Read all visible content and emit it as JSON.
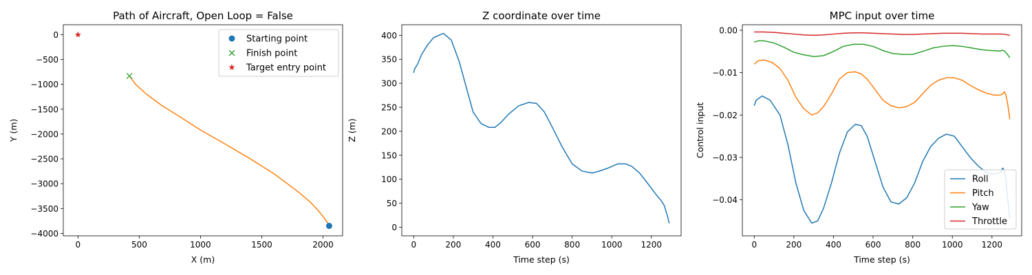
{
  "colors": {
    "blue": "#1f77b4",
    "orange": "#ff7f0e",
    "green": "#2ca02c",
    "red": "#d62728",
    "legend_border": "#cccccc"
  },
  "chart_data": [
    {
      "type": "line",
      "title": "Path of Aircraft, Open Loop = False",
      "xlabel": "X (m)",
      "ylabel": "Y (m)",
      "xlim": [
        -120,
        2160
      ],
      "ylim": [
        -4050,
        200
      ],
      "xticks": [
        0,
        500,
        1000,
        1500,
        2000
      ],
      "yticks": [
        0,
        -500,
        -1000,
        -1500,
        -2000,
        -2500,
        -3000,
        -3500,
        -4000
      ],
      "legend_position": "upper-right",
      "series": [
        {
          "name": "",
          "color_key": "orange",
          "kind": "line",
          "x": [
            420,
            470,
            560,
            680,
            830,
            1000,
            1200,
            1400,
            1600,
            1800,
            1900,
            1960,
            2000,
            2035,
            2050
          ],
          "y": [
            -830,
            -1000,
            -1200,
            -1420,
            -1650,
            -1920,
            -2200,
            -2490,
            -2800,
            -3170,
            -3380,
            -3540,
            -3660,
            -3780,
            -3840
          ]
        },
        {
          "name": "Starting point",
          "color_key": "blue",
          "kind": "circle",
          "x": [
            2050
          ],
          "y": [
            -3850
          ]
        },
        {
          "name": "Finish point",
          "color_key": "green",
          "kind": "x",
          "x": [
            420
          ],
          "y": [
            -830
          ]
        },
        {
          "name": "Target entry point",
          "color_key": "red",
          "kind": "star",
          "x": [
            0
          ],
          "y": [
            0
          ]
        }
      ]
    },
    {
      "type": "line",
      "title": "Z coordinate over time",
      "xlabel": "Time step (s)",
      "ylabel": "Z (m)",
      "xlim": [
        -60,
        1350
      ],
      "ylim": [
        -18,
        422
      ],
      "xticks": [
        0,
        200,
        400,
        600,
        800,
        1000,
        1200
      ],
      "yticks": [
        0,
        50,
        100,
        150,
        200,
        250,
        300,
        350,
        400
      ],
      "series": [
        {
          "name": "",
          "color_key": "blue",
          "x": [
            0,
            5,
            20,
            40,
            70,
            100,
            150,
            190,
            230,
            260,
            300,
            340,
            380,
            410,
            440,
            480,
            530,
            580,
            620,
            660,
            700,
            750,
            800,
            850,
            900,
            930,
            980,
            1030,
            1070,
            1100,
            1140,
            1180,
            1220,
            1250,
            1265,
            1280,
            1290
          ],
          "y": [
            322,
            330,
            340,
            360,
            380,
            395,
            404,
            390,
            345,
            300,
            240,
            216,
            208,
            208,
            218,
            236,
            253,
            260,
            258,
            240,
            208,
            167,
            132,
            117,
            113,
            116,
            123,
            132,
            132,
            127,
            113,
            92,
            70,
            55,
            45,
            25,
            8
          ]
        }
      ]
    },
    {
      "type": "line",
      "title": "MPC input over time",
      "xlabel": "Time step (s)",
      "ylabel": "Control input",
      "xlim": [
        -60,
        1350
      ],
      "ylim": [
        -0.0485,
        0.0013
      ],
      "xticks": [
        0,
        200,
        400,
        600,
        800,
        1000,
        1200
      ],
      "yticks": [
        0.0,
        -0.01,
        -0.02,
        -0.03,
        -0.04
      ],
      "ytick_labels": [
        "0.00",
        "−0.01",
        "−0.02",
        "−0.03",
        "−0.04"
      ],
      "legend_position": "lower-right",
      "series": [
        {
          "name": "Roll",
          "color_key": "blue",
          "x": [
            0,
            10,
            40,
            80,
            130,
            170,
            210,
            250,
            290,
            320,
            350,
            390,
            430,
            470,
            510,
            540,
            570,
            610,
            650,
            690,
            730,
            770,
            810,
            850,
            890,
            930,
            970,
            1010,
            1050,
            1090,
            1130,
            1170,
            1210,
            1240,
            1255,
            1260,
            1270,
            1280,
            1290
          ],
          "y": [
            -0.0178,
            -0.0165,
            -0.0155,
            -0.0165,
            -0.02,
            -0.027,
            -0.036,
            -0.0425,
            -0.0455,
            -0.045,
            -0.042,
            -0.036,
            -0.029,
            -0.024,
            -0.0222,
            -0.0225,
            -0.025,
            -0.031,
            -0.037,
            -0.0405,
            -0.041,
            -0.0395,
            -0.036,
            -0.031,
            -0.0275,
            -0.0255,
            -0.0245,
            -0.025,
            -0.0275,
            -0.03,
            -0.032,
            -0.0335,
            -0.034,
            -0.0335,
            -0.0325,
            -0.033,
            -0.035,
            -0.04,
            -0.0445
          ]
        },
        {
          "name": "Pitch",
          "color_key": "orange",
          "x": [
            0,
            20,
            50,
            90,
            130,
            170,
            210,
            250,
            290,
            320,
            350,
            390,
            430,
            470,
            510,
            540,
            570,
            610,
            650,
            690,
            730,
            770,
            810,
            850,
            890,
            930,
            970,
            1010,
            1050,
            1090,
            1130,
            1170,
            1210,
            1240,
            1255,
            1262,
            1270,
            1280,
            1290
          ],
          "y": [
            -0.008,
            -0.0072,
            -0.007,
            -0.0076,
            -0.009,
            -0.0118,
            -0.0158,
            -0.0185,
            -0.02,
            -0.0195,
            -0.018,
            -0.015,
            -0.0115,
            -0.01,
            -0.0098,
            -0.0103,
            -0.0115,
            -0.014,
            -0.0165,
            -0.0178,
            -0.0183,
            -0.018,
            -0.017,
            -0.015,
            -0.013,
            -0.0118,
            -0.0112,
            -0.0112,
            -0.0118,
            -0.013,
            -0.014,
            -0.0148,
            -0.0153,
            -0.0153,
            -0.015,
            -0.0145,
            -0.0152,
            -0.0175,
            -0.021
          ]
        },
        {
          "name": "Yaw",
          "color_key": "green",
          "x": [
            0,
            20,
            50,
            100,
            150,
            200,
            250,
            300,
            350,
            400,
            450,
            500,
            550,
            600,
            650,
            700,
            750,
            800,
            850,
            900,
            950,
            1000,
            1050,
            1100,
            1150,
            1200,
            1240,
            1255,
            1265,
            1275,
            1290
          ],
          "y": [
            -0.0028,
            -0.0025,
            -0.0025,
            -0.003,
            -0.004,
            -0.0052,
            -0.0058,
            -0.0062,
            -0.006,
            -0.005,
            -0.0038,
            -0.0033,
            -0.0033,
            -0.0038,
            -0.0048,
            -0.0055,
            -0.0057,
            -0.0057,
            -0.005,
            -0.0042,
            -0.0038,
            -0.0036,
            -0.0038,
            -0.0042,
            -0.0046,
            -0.0048,
            -0.0049,
            -0.0047,
            -0.005,
            -0.0055,
            -0.0065
          ]
        },
        {
          "name": "Throttle",
          "color_key": "red",
          "x": [
            0,
            50,
            100,
            150,
            200,
            250,
            300,
            350,
            400,
            450,
            500,
            550,
            600,
            650,
            700,
            750,
            800,
            850,
            900,
            950,
            1000,
            1050,
            1100,
            1150,
            1200,
            1250,
            1270,
            1290
          ],
          "y": [
            -0.0004,
            -0.0004,
            -0.0005,
            -0.0007,
            -0.0009,
            -0.0011,
            -0.0012,
            -0.0011,
            -0.0009,
            -0.0007,
            -0.0006,
            -0.0006,
            -0.0007,
            -0.0008,
            -0.0009,
            -0.001,
            -0.001,
            -0.0009,
            -0.0008,
            -0.0007,
            -0.0007,
            -0.0007,
            -0.0008,
            -0.0009,
            -0.0009,
            -0.0009,
            -0.001,
            -0.0012
          ]
        }
      ]
    }
  ]
}
